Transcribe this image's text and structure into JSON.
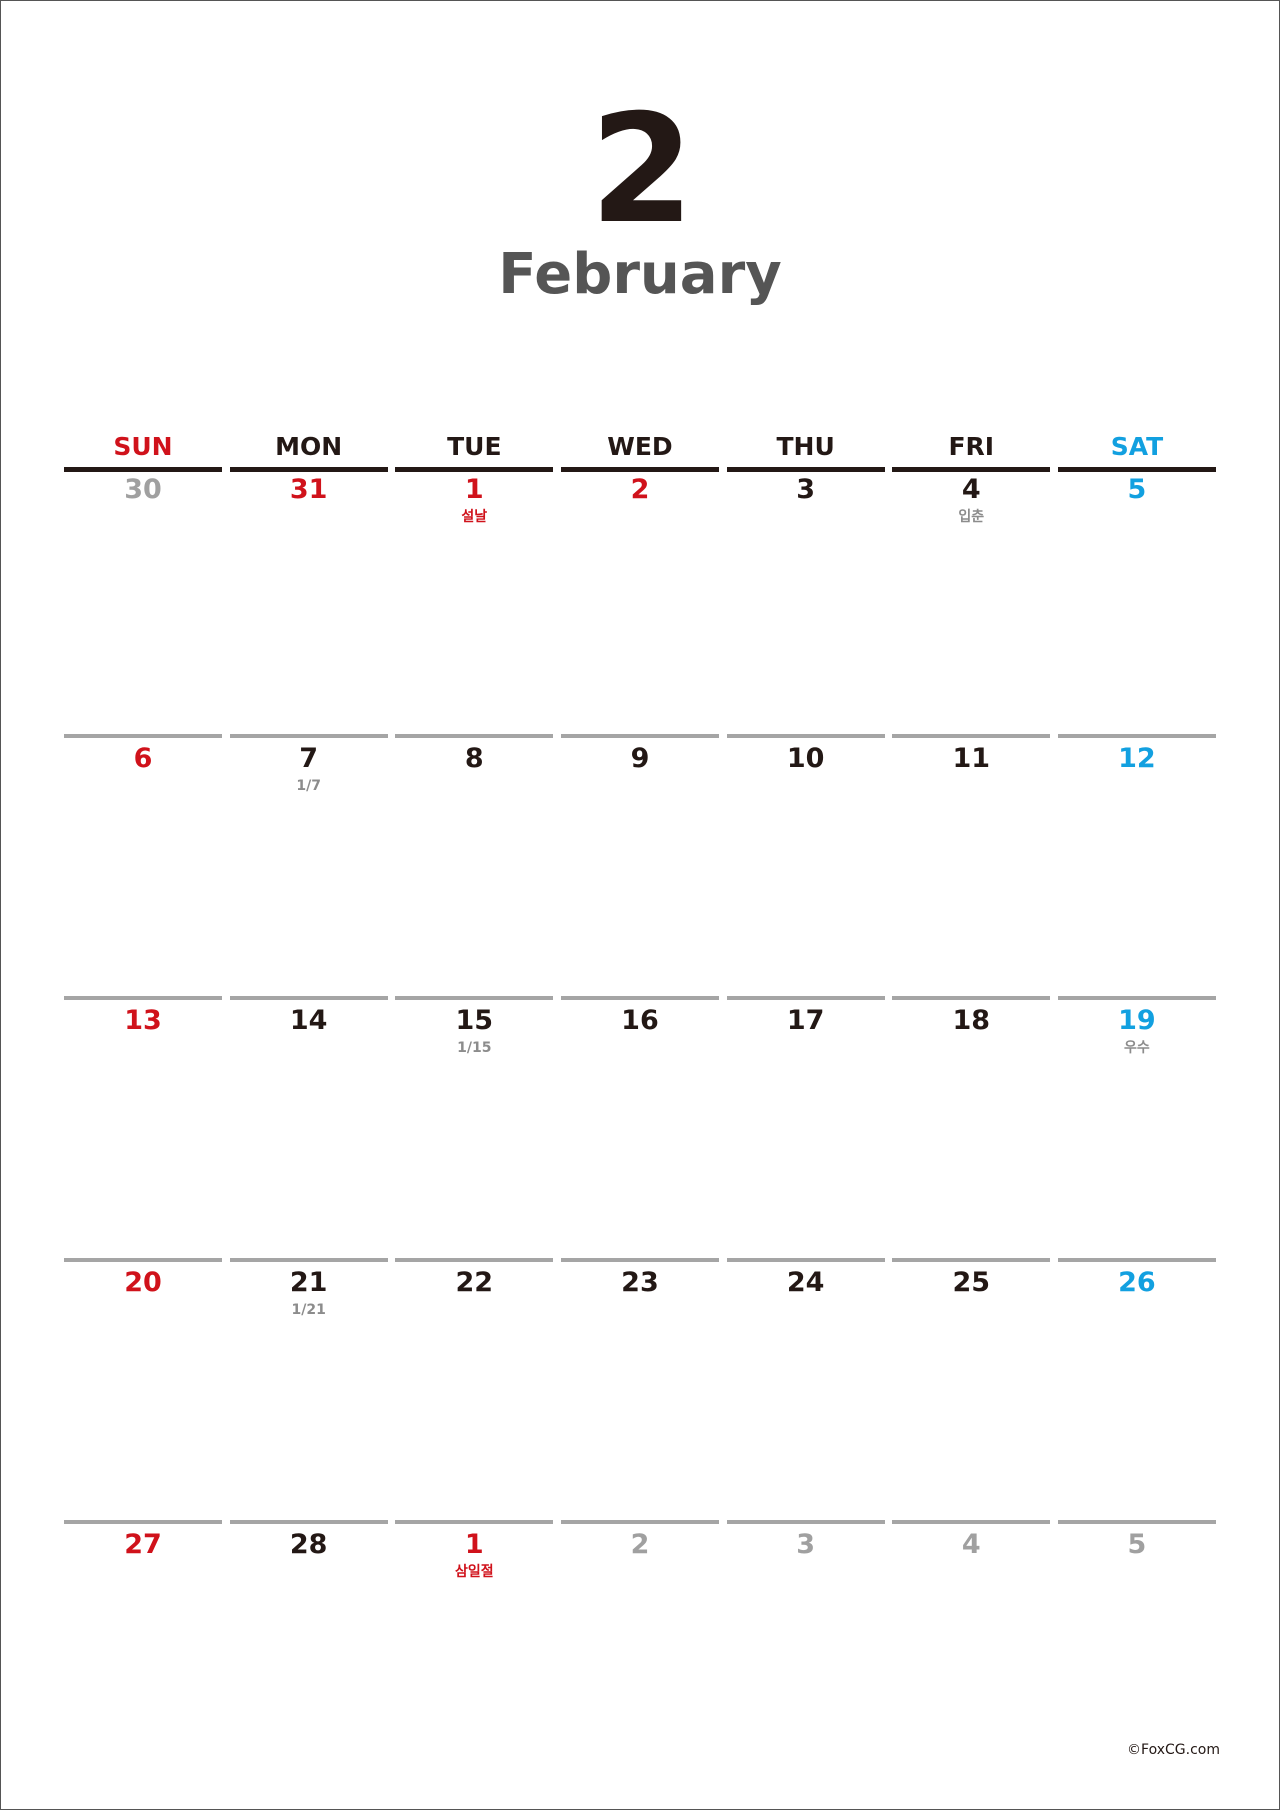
{
  "month": {
    "number": "2",
    "name": "February"
  },
  "weekdays": [
    "SUN",
    "MON",
    "TUE",
    "WED",
    "THU",
    "FRI",
    "SAT"
  ],
  "weeks": [
    [
      {
        "day": "30",
        "kind": "muted",
        "note": ""
      },
      {
        "day": "31",
        "kind": "sun",
        "note": ""
      },
      {
        "day": "1",
        "kind": "sun",
        "note": "설날",
        "note_kind": "holiday"
      },
      {
        "day": "2",
        "kind": "sun",
        "note": ""
      },
      {
        "day": "3",
        "kind": "",
        "note": ""
      },
      {
        "day": "4",
        "kind": "",
        "note": "입춘"
      },
      {
        "day": "5",
        "kind": "sat",
        "note": ""
      }
    ],
    [
      {
        "day": "6",
        "kind": "sun",
        "note": ""
      },
      {
        "day": "7",
        "kind": "",
        "note": "1/7"
      },
      {
        "day": "8",
        "kind": "",
        "note": ""
      },
      {
        "day": "9",
        "kind": "",
        "note": ""
      },
      {
        "day": "10",
        "kind": "",
        "note": ""
      },
      {
        "day": "11",
        "kind": "",
        "note": ""
      },
      {
        "day": "12",
        "kind": "sat",
        "note": ""
      }
    ],
    [
      {
        "day": "13",
        "kind": "sun",
        "note": ""
      },
      {
        "day": "14",
        "kind": "",
        "note": ""
      },
      {
        "day": "15",
        "kind": "",
        "note": "1/15"
      },
      {
        "day": "16",
        "kind": "",
        "note": ""
      },
      {
        "day": "17",
        "kind": "",
        "note": ""
      },
      {
        "day": "18",
        "kind": "",
        "note": ""
      },
      {
        "day": "19",
        "kind": "sat",
        "note": "우수"
      }
    ],
    [
      {
        "day": "20",
        "kind": "sun",
        "note": ""
      },
      {
        "day": "21",
        "kind": "",
        "note": "1/21"
      },
      {
        "day": "22",
        "kind": "",
        "note": ""
      },
      {
        "day": "23",
        "kind": "",
        "note": ""
      },
      {
        "day": "24",
        "kind": "",
        "note": ""
      },
      {
        "day": "25",
        "kind": "",
        "note": ""
      },
      {
        "day": "26",
        "kind": "sat",
        "note": ""
      }
    ],
    [
      {
        "day": "27",
        "kind": "sun",
        "note": ""
      },
      {
        "day": "28",
        "kind": "",
        "note": ""
      },
      {
        "day": "1",
        "kind": "sun",
        "note": "삼일절",
        "note_kind": "holiday"
      },
      {
        "day": "2",
        "kind": "muted",
        "note": ""
      },
      {
        "day": "3",
        "kind": "muted",
        "note": ""
      },
      {
        "day": "4",
        "kind": "muted",
        "note": ""
      },
      {
        "day": "5",
        "kind": "muted",
        "note": ""
      }
    ]
  ],
  "credit": "©FoxCG.com",
  "colors": {
    "sunday_holiday": "#d0121b",
    "saturday": "#12a0e0",
    "text": "#231815",
    "muted": "#a0a0a0",
    "note": "#8c8c8c",
    "divider": "#a5a5a5"
  }
}
